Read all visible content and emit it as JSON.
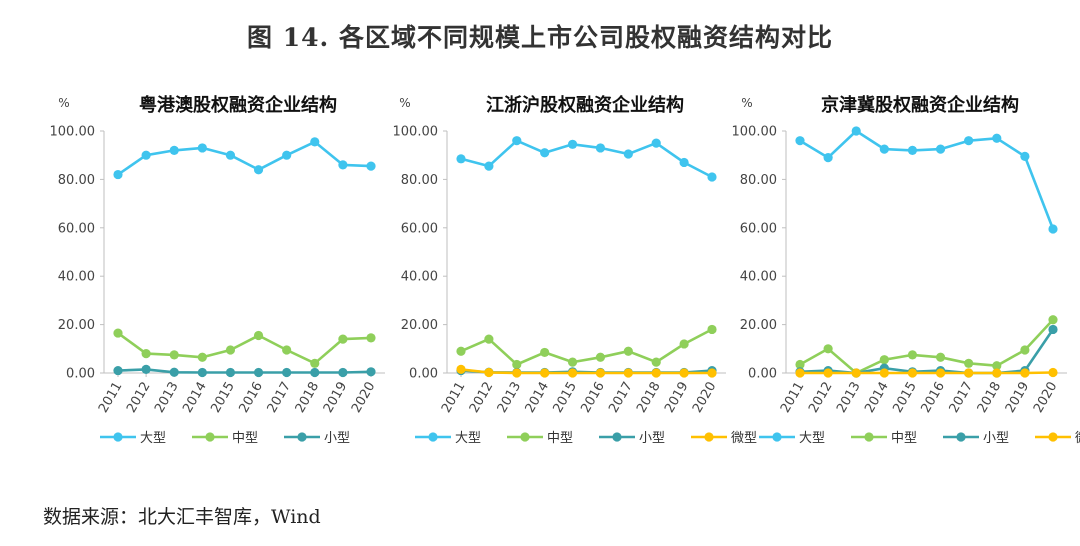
{
  "figure_title": "图 14.  各区域不同规模上市公司股权融资结构对比",
  "source_note": "数据来源：北大汇丰智库，Wind",
  "colors": {
    "大型": "#3fc4ee",
    "中型": "#8fcf5a",
    "小型": "#3a9fa8",
    "微型": "#ffc000"
  },
  "chart_data": [
    {
      "type": "line",
      "title": "粤港澳股权融资企业结构",
      "ylabel": "%",
      "ylim": [
        0,
        100
      ],
      "yticks": [
        "0.00",
        "20.00",
        "40.00",
        "60.00",
        "80.00",
        "100.00"
      ],
      "x": [
        "2011",
        "2012",
        "2013",
        "2014",
        "2015",
        "2016",
        "2017",
        "2018",
        "2019",
        "2020"
      ],
      "series": [
        {
          "name": "大型",
          "values": [
            82,
            90,
            92,
            93,
            90,
            84,
            90,
            95.5,
            86,
            85.5
          ]
        },
        {
          "name": "中型",
          "values": [
            16.5,
            8,
            7.5,
            6.5,
            9.5,
            15.5,
            9.5,
            4,
            14,
            14.5
          ]
        },
        {
          "name": "小型",
          "values": [
            1,
            1.5,
            0.3,
            0.2,
            0.2,
            0.2,
            0.2,
            0.2,
            0.2,
            0.5
          ]
        }
      ]
    },
    {
      "type": "line",
      "title": "江浙沪股权融资企业结构",
      "ylabel": "%",
      "ylim": [
        0,
        100
      ],
      "yticks": [
        "0.00",
        "20.00",
        "40.00",
        "60.00",
        "80.00",
        "100.00"
      ],
      "x": [
        "2011",
        "2012",
        "2013",
        "2014",
        "2015",
        "2016",
        "2017",
        "2018",
        "2019",
        "2020"
      ],
      "series": [
        {
          "name": "大型",
          "values": [
            88.5,
            85.5,
            96,
            91,
            94.5,
            93,
            90.5,
            95,
            87,
            81
          ]
        },
        {
          "name": "中型",
          "values": [
            9,
            14,
            3.5,
            8.5,
            4.5,
            6.5,
            9,
            4.5,
            12,
            18
          ]
        },
        {
          "name": "小型",
          "values": [
            1,
            0.3,
            0.2,
            0.2,
            0.5,
            0.2,
            0.2,
            0.2,
            0.2,
            1
          ]
        },
        {
          "name": "微型",
          "values": [
            1.5,
            0.2,
            0,
            0,
            0,
            0,
            0,
            0,
            0,
            0
          ]
        }
      ]
    },
    {
      "type": "line",
      "title": "京津冀股权融资企业结构",
      "ylabel": "%",
      "ylim": [
        0,
        100
      ],
      "yticks": [
        "0.00",
        "20.00",
        "40.00",
        "60.00",
        "80.00",
        "100.00"
      ],
      "x": [
        "2011",
        "2012",
        "2013",
        "2014",
        "2015",
        "2016",
        "2017",
        "2018",
        "2019",
        "2020"
      ],
      "series": [
        {
          "name": "大型",
          "values": [
            96,
            89,
            100,
            92.5,
            92,
            92.5,
            96,
            97,
            89.5,
            59.5
          ]
        },
        {
          "name": "中型",
          "values": [
            3.5,
            10,
            0,
            5.5,
            7.5,
            6.5,
            4,
            3,
            9.5,
            22
          ]
        },
        {
          "name": "小型",
          "values": [
            0.5,
            1,
            0,
            2,
            0.5,
            1,
            0,
            0,
            1,
            18
          ]
        },
        {
          "name": "微型",
          "values": [
            0,
            0,
            0,
            0,
            0,
            0,
            0,
            0,
            0,
            0.2
          ]
        }
      ]
    }
  ]
}
